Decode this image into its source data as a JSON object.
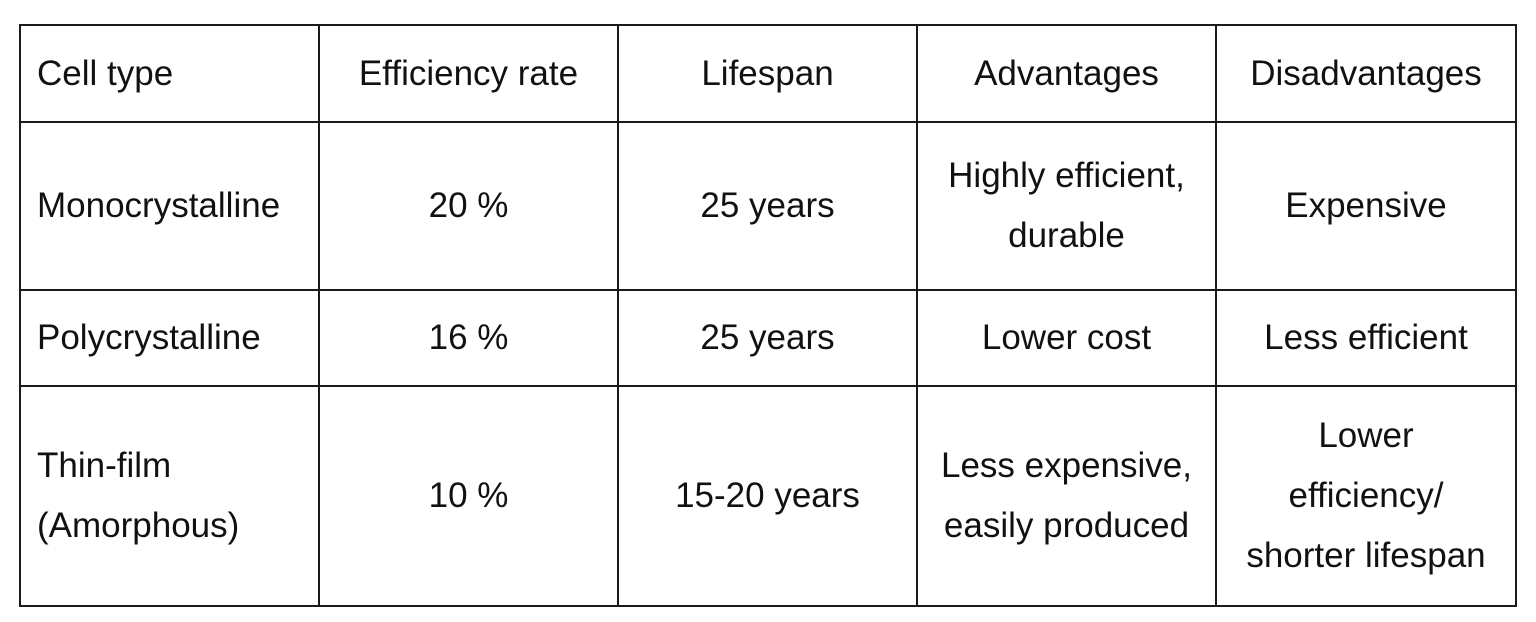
{
  "table": {
    "headers": [
      "Cell type",
      "Efficiency rate",
      "Lifespan",
      "Advantages",
      "Disadvantages"
    ],
    "rows": [
      {
        "cell_type": [
          "Monocrystalline"
        ],
        "efficiency": "20 %",
        "lifespan": "25 years",
        "advantages": [
          "Highly  efficient,",
          "durable"
        ],
        "disadvantages": [
          "Expensive"
        ]
      },
      {
        "cell_type": [
          "Polycrystalline"
        ],
        "efficiency": "16 %",
        "lifespan": "25 years",
        "advantages": [
          "Lower cost"
        ],
        "disadvantages": [
          "Less efficient"
        ]
      },
      {
        "cell_type": [
          "Thin-film",
          "(Amorphous)"
        ],
        "efficiency": "10 %",
        "lifespan": "15-20 years",
        "advantages": [
          "Less expensive,",
          "easily produced"
        ],
        "disadvantages": [
          "Lower",
          "efficiency/",
          "shorter lifespan"
        ]
      }
    ]
  }
}
